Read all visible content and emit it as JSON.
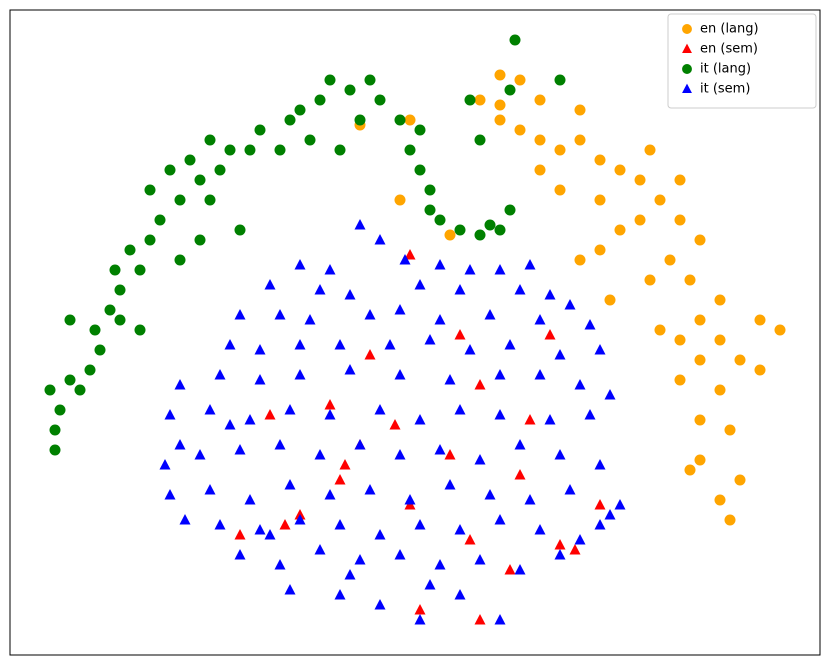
{
  "chart_data": {
    "type": "scatter",
    "xlim": [
      10,
      820
    ],
    "ylim": [
      10,
      655
    ],
    "legend": "upper right",
    "series": [
      {
        "name": "en (lang)",
        "color": "#ffa500",
        "marker": "o",
        "x": [
          480,
          500,
          520,
          540,
          500,
          520,
          540,
          560,
          580,
          600,
          620,
          640,
          660,
          680,
          700,
          670,
          650,
          690,
          720,
          700,
          680,
          720,
          740,
          760,
          780,
          700,
          680,
          720,
          700,
          730,
          700,
          740,
          720,
          730,
          690,
          610,
          600,
          580,
          620,
          640,
          560,
          540,
          600,
          660,
          760,
          580,
          360,
          400,
          410,
          450,
          500,
          650,
          680
        ],
        "values": [
          565,
          590,
          585,
          565,
          545,
          535,
          525,
          515,
          525,
          505,
          495,
          485,
          465,
          445,
          425,
          405,
          385,
          385,
          365,
          345,
          325,
          325,
          305,
          345,
          335,
          305,
          285,
          275,
          245,
          235,
          205,
          185,
          165,
          145,
          195,
          365,
          415,
          405,
          435,
          445,
          475,
          495,
          465,
          335,
          295,
          555,
          540,
          465,
          545,
          430,
          560,
          515,
          485
        ]
      },
      {
        "name": "en (sem)",
        "color": "#ff0000",
        "marker": "^",
        "x": [
          360,
          410,
          370,
          460,
          270,
          345,
          480,
          520,
          300,
          410,
          470,
          560,
          600,
          285,
          420,
          480,
          510,
          240,
          340,
          395,
          450,
          530,
          550,
          330,
          575
        ],
        "values": [
          220,
          410,
          310,
          330,
          250,
          200,
          280,
          190,
          150,
          160,
          125,
          120,
          160,
          140,
          55,
          45,
          95,
          130,
          185,
          240,
          210,
          245,
          330,
          260,
          115
        ]
      },
      {
        "name": "it (lang)",
        "color": "#008000",
        "marker": "o",
        "x": [
          55,
          55,
          60,
          50,
          70,
          90,
          100,
          95,
          110,
          120,
          115,
          130,
          140,
          150,
          160,
          150,
          170,
          190,
          180,
          200,
          210,
          220,
          210,
          230,
          250,
          260,
          280,
          290,
          300,
          310,
          320,
          330,
          350,
          360,
          340,
          370,
          380,
          400,
          410,
          420,
          430,
          420,
          430,
          440,
          460,
          480,
          500,
          510,
          490,
          470,
          510,
          515,
          560,
          480,
          240,
          200,
          120,
          140,
          80,
          70,
          180
        ],
        "values": [
          215,
          235,
          255,
          275,
          285,
          295,
          315,
          335,
          355,
          375,
          395,
          415,
          395,
          425,
          445,
          475,
          495,
          505,
          465,
          485,
          465,
          495,
          525,
          515,
          515,
          535,
          515,
          545,
          555,
          525,
          565,
          585,
          575,
          545,
          515,
          585,
          565,
          545,
          515,
          495,
          475,
          535,
          455,
          445,
          435,
          430,
          435,
          455,
          440,
          565,
          575,
          625,
          585,
          525,
          435,
          425,
          345,
          335,
          275,
          345,
          405
        ]
      },
      {
        "name": "it (sem)",
        "color": "#0000ff",
        "marker": "^",
        "x": [
          360,
          380,
          405,
          300,
          330,
          440,
          470,
          500,
          530,
          270,
          320,
          350,
          420,
          460,
          520,
          550,
          570,
          240,
          280,
          310,
          370,
          400,
          440,
          490,
          540,
          590,
          230,
          260,
          300,
          340,
          390,
          430,
          470,
          510,
          560,
          600,
          180,
          220,
          260,
          300,
          350,
          400,
          450,
          500,
          540,
          580,
          610,
          170,
          210,
          250,
          290,
          330,
          380,
          420,
          460,
          500,
          550,
          590,
          165,
          200,
          240,
          280,
          320,
          360,
          400,
          440,
          480,
          520,
          560,
          600,
          170,
          210,
          250,
          290,
          330,
          370,
          410,
          450,
          490,
          530,
          570,
          620,
          185,
          220,
          260,
          300,
          340,
          380,
          420,
          460,
          500,
          540,
          580,
          600,
          240,
          280,
          320,
          360,
          400,
          440,
          480,
          520,
          560,
          290,
          340,
          380,
          420,
          460,
          500,
          430,
          350,
          270,
          610,
          230,
          180
        ],
        "values": [
          440,
          425,
          405,
          400,
          395,
          400,
          395,
          395,
          400,
          380,
          375,
          370,
          380,
          375,
          375,
          370,
          360,
          350,
          350,
          345,
          350,
          355,
          345,
          350,
          345,
          340,
          320,
          315,
          320,
          320,
          320,
          325,
          315,
          320,
          310,
          315,
          280,
          290,
          285,
          290,
          295,
          290,
          285,
          290,
          290,
          280,
          270,
          250,
          255,
          245,
          255,
          250,
          255,
          245,
          255,
          250,
          245,
          250,
          200,
          210,
          215,
          220,
          210,
          220,
          210,
          215,
          205,
          220,
          210,
          200,
          170,
          175,
          165,
          180,
          170,
          175,
          165,
          180,
          170,
          165,
          175,
          160,
          145,
          140,
          135,
          145,
          140,
          130,
          140,
          135,
          145,
          135,
          125,
          140,
          110,
          100,
          115,
          105,
          110,
          100,
          105,
          95,
          110,
          75,
          70,
          60,
          45,
          70,
          45,
          80,
          90,
          130,
          150,
          240,
          220
        ]
      }
    ]
  }
}
